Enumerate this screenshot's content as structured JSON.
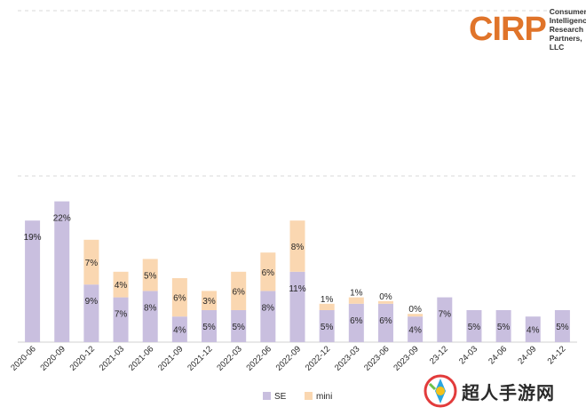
{
  "logo": {
    "mark": "CIRP",
    "lines": [
      "Consumer",
      "Intelligence",
      "Research",
      "Partners, LLC"
    ]
  },
  "watermark": {
    "text": "超人手游网"
  },
  "colors": {
    "se": "#c9bfdf",
    "mini": "#fad7b1",
    "grid": "#d9d9d9",
    "text": "#262626"
  },
  "chart_data": {
    "type": "bar",
    "stacked": true,
    "categories": [
      "2020-06",
      "2020-09",
      "2020-12",
      "2021-03",
      "2021-06",
      "2021-09",
      "2021-12",
      "2022-03",
      "2022-06",
      "2022-09",
      "2022-12",
      "2023-03",
      "2023-06",
      "2023-09",
      "23-12",
      "24-03",
      "24-06",
      "24-09",
      "24-12"
    ],
    "series": [
      {
        "name": "SE",
        "values": [
          19,
          22,
          9,
          7,
          8,
          4,
          5,
          5,
          8,
          11,
          5,
          6,
          6,
          4,
          7,
          5,
          5,
          4,
          5
        ]
      },
      {
        "name": "mini",
        "values": [
          null,
          null,
          7,
          4,
          5,
          6,
          3,
          6,
          6,
          8,
          1,
          1,
          0,
          0,
          null,
          null,
          null,
          null,
          null
        ]
      }
    ],
    "bar_labels": {
      "SE": [
        "19%",
        "22%",
        "9%",
        "7%",
        "8%",
        "4%",
        "5%",
        "5%",
        "8%",
        "11%",
        "5%",
        "6%",
        "6%",
        "4%",
        "7%",
        "5%",
        "5%",
        "4%",
        "5%"
      ],
      "mini": [
        null,
        null,
        "7%",
        "4%",
        "5%",
        "6%",
        "3%",
        "6%",
        "6%",
        "8%",
        "1%",
        "1%",
        "0%",
        "0%",
        null,
        null,
        null,
        null,
        null
      ]
    },
    "legend": {
      "position": "bottom",
      "entries": [
        "SE",
        "mini"
      ]
    },
    "grid": true
  }
}
